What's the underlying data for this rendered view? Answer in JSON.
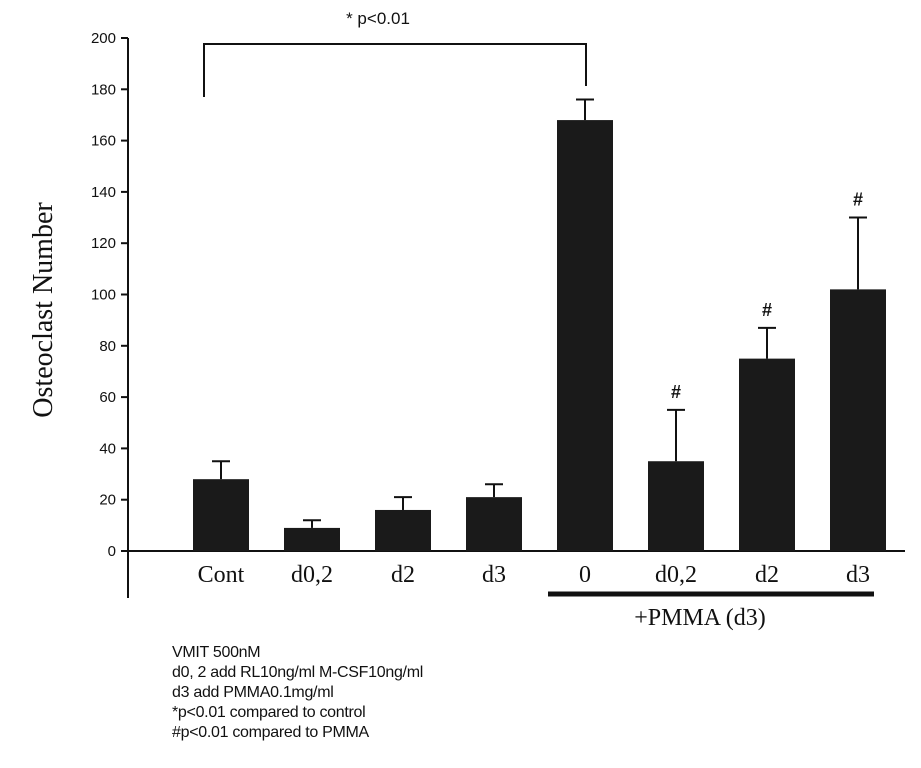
{
  "chart_data": {
    "type": "bar",
    "title": "",
    "ylabel": "Osteoclast Number",
    "xlabel": "",
    "ylim": [
      0,
      200
    ],
    "yticks": [
      0,
      20,
      40,
      60,
      80,
      100,
      120,
      140,
      160,
      180,
      200
    ],
    "categories": [
      "Cont",
      "d0,2",
      "d2",
      "d3",
      "0",
      "d0,2",
      "d2",
      "d3"
    ],
    "values": [
      28,
      9,
      16,
      21,
      168,
      35,
      75,
      102
    ],
    "errors": [
      7,
      3,
      5,
      5,
      8,
      20,
      12,
      28
    ],
    "significance_marks": [
      "",
      "",
      "",
      "",
      "",
      "#",
      "#",
      "#"
    ],
    "bracket": {
      "from_category": 0,
      "to_category": 4,
      "label": "* p<0.01"
    },
    "group": {
      "label": "+PMMA (d3)",
      "from_category": 4,
      "to_category": 7
    },
    "bar_color": "#1a1a1a",
    "grid": false,
    "notes": [
      "VMIT 500nM",
      "d0, 2 add RL10ng/ml M-CSF10ng/ml",
      "d3 add PMMA0.1mg/ml",
      "*p<0.01 compared to control",
      "#p<0.01 compared to PMMA"
    ]
  }
}
